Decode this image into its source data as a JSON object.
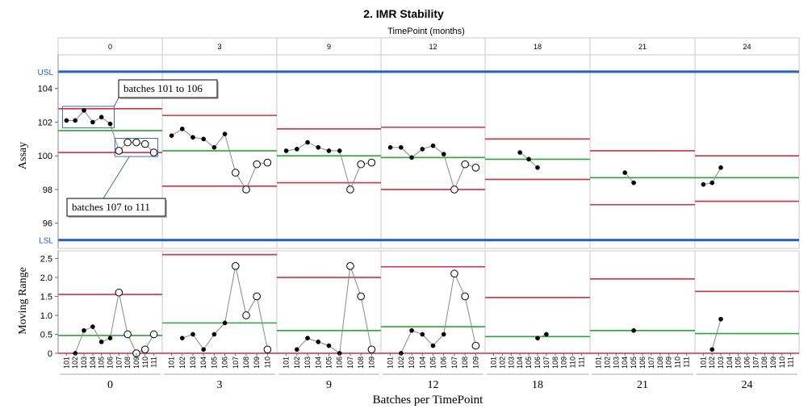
{
  "chart_data": {
    "type": "line",
    "title": "2. IMR Stability",
    "subtitle": "TimePoint (months)",
    "xlabel": "Batches per TimePoint",
    "colors": {
      "spec": "#1f5fd8",
      "limit": "#d92b43",
      "center": "#22aa33",
      "line": "#888888",
      "point": "#000000"
    },
    "individual": {
      "ylabel": "Assay",
      "ylim": [
        94.5,
        106
      ],
      "yticks": [
        96,
        98,
        100,
        102,
        104
      ],
      "usl": 105.0,
      "lsl": 95.0,
      "usl_label": "USL",
      "lsl_label": "LSL"
    },
    "moving_range": {
      "ylabel": "Moving Range",
      "ylim": [
        0,
        2.7
      ],
      "yticks": [
        "0",
        "0.5",
        "1.0",
        "1.5",
        "2.0",
        "2.5"
      ]
    },
    "batches": [
      "101",
      "102",
      "103",
      "104",
      "105",
      "106",
      "107",
      "108",
      "109",
      "110",
      "111"
    ],
    "groups": [
      {
        "timepoint": "0",
        "values": [
          102.1,
          102.1,
          102.7,
          102.0,
          102.3,
          101.9,
          100.3,
          100.8,
          100.8,
          100.7,
          100.2
        ],
        "open": [
          false,
          false,
          false,
          false,
          false,
          false,
          true,
          true,
          true,
          true,
          true
        ],
        "ucl": 102.8,
        "center": 101.5,
        "lcl": 100.2,
        "mr": [
          0,
          0.6,
          0.7,
          0.3,
          0.4,
          1.6,
          0.5,
          0.0,
          0.1,
          0.5
        ],
        "mr_open": [
          false,
          false,
          false,
          false,
          false,
          true,
          true,
          true,
          true,
          true
        ],
        "mr_ucl": 1.55,
        "mr_center": 0.47
      },
      {
        "timepoint": "3",
        "values": [
          101.2,
          101.6,
          101.1,
          101.0,
          100.5,
          101.3,
          99.0,
          98.0,
          99.5,
          99.6
        ],
        "open": [
          false,
          false,
          false,
          false,
          false,
          false,
          true,
          true,
          true,
          true
        ],
        "ucl": 102.4,
        "center": 100.3,
        "lcl": 98.2,
        "mr": [
          0.4,
          0.5,
          0.1,
          0.5,
          0.8,
          2.3,
          1.0,
          1.5,
          0.1
        ],
        "mr_open": [
          false,
          false,
          false,
          false,
          false,
          true,
          true,
          true,
          true
        ],
        "mr_ucl": 2.6,
        "mr_center": 0.8
      },
      {
        "timepoint": "9",
        "values": [
          100.3,
          100.4,
          100.8,
          100.5,
          100.3,
          100.3,
          98.0,
          99.5,
          99.6
        ],
        "open": [
          false,
          false,
          false,
          false,
          false,
          false,
          true,
          true,
          true
        ],
        "ucl": 101.6,
        "center": 100.0,
        "lcl": 98.4,
        "mr": [
          0.1,
          0.4,
          0.3,
          0.2,
          0.0,
          2.3,
          1.5,
          0.1
        ],
        "mr_open": [
          false,
          false,
          false,
          false,
          false,
          true,
          true,
          true
        ],
        "mr_ucl": 2.0,
        "mr_center": 0.6
      },
      {
        "timepoint": "12",
        "values": [
          100.5,
          100.5,
          99.9,
          100.4,
          100.6,
          100.1,
          98.0,
          99.5,
          99.3
        ],
        "open": [
          false,
          false,
          false,
          false,
          false,
          false,
          true,
          true,
          true
        ],
        "ucl": 101.7,
        "center": 99.9,
        "lcl": 98.0,
        "mr": [
          0.0,
          0.6,
          0.5,
          0.2,
          0.5,
          2.1,
          1.5,
          0.2
        ],
        "mr_open": [
          false,
          false,
          false,
          false,
          false,
          true,
          true,
          true
        ],
        "mr_ucl": 2.28,
        "mr_center": 0.7
      },
      {
        "timepoint": "18",
        "values": [
          null,
          null,
          null,
          100.2,
          99.8,
          99.3,
          null,
          null,
          null,
          null,
          null
        ],
        "open": [
          false,
          false,
          false,
          false,
          false,
          false,
          false,
          false,
          false,
          false,
          false
        ],
        "ucl": 101.0,
        "center": 99.8,
        "lcl": 98.6,
        "mr": [
          null,
          null,
          null,
          null,
          0.4,
          0.5,
          null,
          null,
          null,
          null
        ],
        "mr_open": [
          false,
          false,
          false,
          false,
          false,
          false,
          false,
          false,
          false,
          false
        ],
        "mr_ucl": 1.47,
        "mr_center": 0.44
      },
      {
        "timepoint": "21",
        "values": [
          null,
          null,
          null,
          99.0,
          98.4,
          null,
          null,
          null,
          null,
          null,
          null
        ],
        "open": [
          false,
          false,
          false,
          false,
          false,
          false,
          false,
          false,
          false,
          false,
          false
        ],
        "ucl": 100.3,
        "center": 98.7,
        "lcl": 97.1,
        "mr": [
          null,
          null,
          null,
          0.6,
          null,
          null,
          null,
          null,
          null,
          null
        ],
        "mr_open": [
          false,
          false,
          false,
          false,
          false,
          false,
          false,
          false,
          false,
          false
        ],
        "mr_ucl": 1.96,
        "mr_center": 0.6
      },
      {
        "timepoint": "24",
        "values": [
          98.3,
          98.4,
          99.3,
          null,
          null,
          null,
          null,
          null,
          null,
          null,
          null
        ],
        "open": [
          false,
          false,
          false,
          false,
          false,
          false,
          false,
          false,
          false,
          false,
          false
        ],
        "ucl": 100.0,
        "center": 98.7,
        "lcl": 97.3,
        "mr": [
          0.1,
          0.9,
          null,
          null,
          null,
          null,
          null,
          null,
          null,
          null
        ],
        "mr_open": [
          false,
          false,
          false,
          false,
          false,
          false,
          false,
          false,
          false,
          false
        ],
        "mr_ucl": 1.63,
        "mr_center": 0.52
      }
    ],
    "annotations": [
      {
        "text": "batches 101 to 106",
        "group": 0,
        "from": 0,
        "to": 5
      },
      {
        "text": "batches 107 to 111",
        "group": 0,
        "from": 6,
        "to": 10
      }
    ]
  }
}
